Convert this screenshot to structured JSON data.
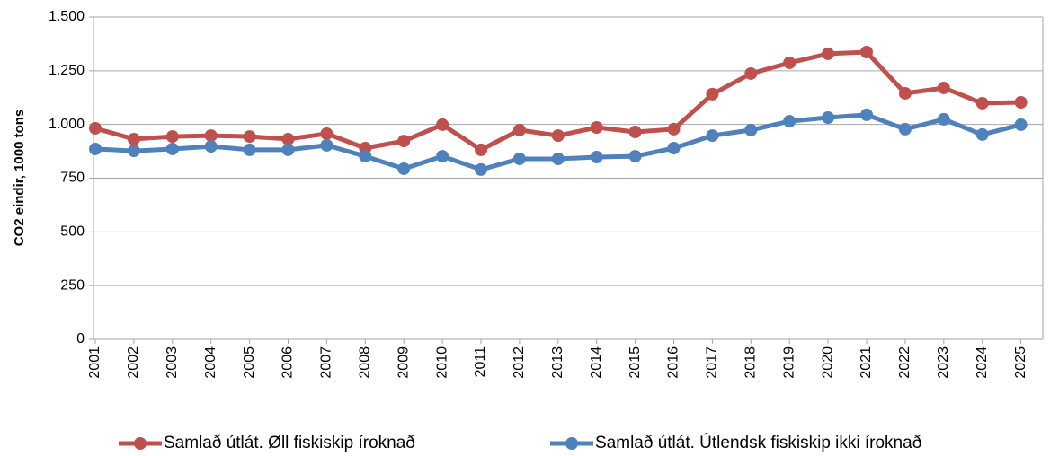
{
  "chart_data": {
    "type": "line",
    "y_label": "CO2  eindir,  1000 tons",
    "categories": [
      "2001",
      "2002",
      "2003",
      "2004",
      "2005",
      "2006",
      "2007",
      "2008",
      "2009",
      "2010",
      "2011",
      "2012",
      "2013",
      "2014",
      "2015",
      "2016",
      "2017",
      "2018",
      "2019",
      "2020",
      "2021",
      "2022",
      "2023",
      "2024",
      "2025"
    ],
    "series": [
      {
        "name": "Samlað útlát. Øll fiskiskip íroknað",
        "color": "#c0504d",
        "values": [
          982,
          932,
          944,
          948,
          944,
          932,
          957,
          890,
          923,
          999,
          882,
          974,
          948,
          986,
          965,
          978,
          1141,
          1237,
          1287,
          1329,
          1337,
          1145,
          1170,
          1099,
          1103
        ]
      },
      {
        "name": "Samlað útlát. Útlendsk fiskiskip ikki íroknað",
        "color": "#4f81bd",
        "values": [
          886,
          877,
          886,
          898,
          882,
          882,
          903,
          852,
          794,
          852,
          790,
          840,
          840,
          848,
          852,
          890,
          948,
          974,
          1015,
          1032,
          1045,
          978,
          1024,
          953,
          999
        ]
      }
    ],
    "ylim": [
      0,
      1500
    ],
    "yticks": [
      0,
      250,
      500,
      750,
      {
        "value": 1000,
        "label": "1.000"
      },
      {
        "value": 1250,
        "label": "1.250"
      },
      {
        "value": 1500,
        "label": "1.500"
      }
    ],
    "grid": true,
    "legend": "bottom"
  }
}
